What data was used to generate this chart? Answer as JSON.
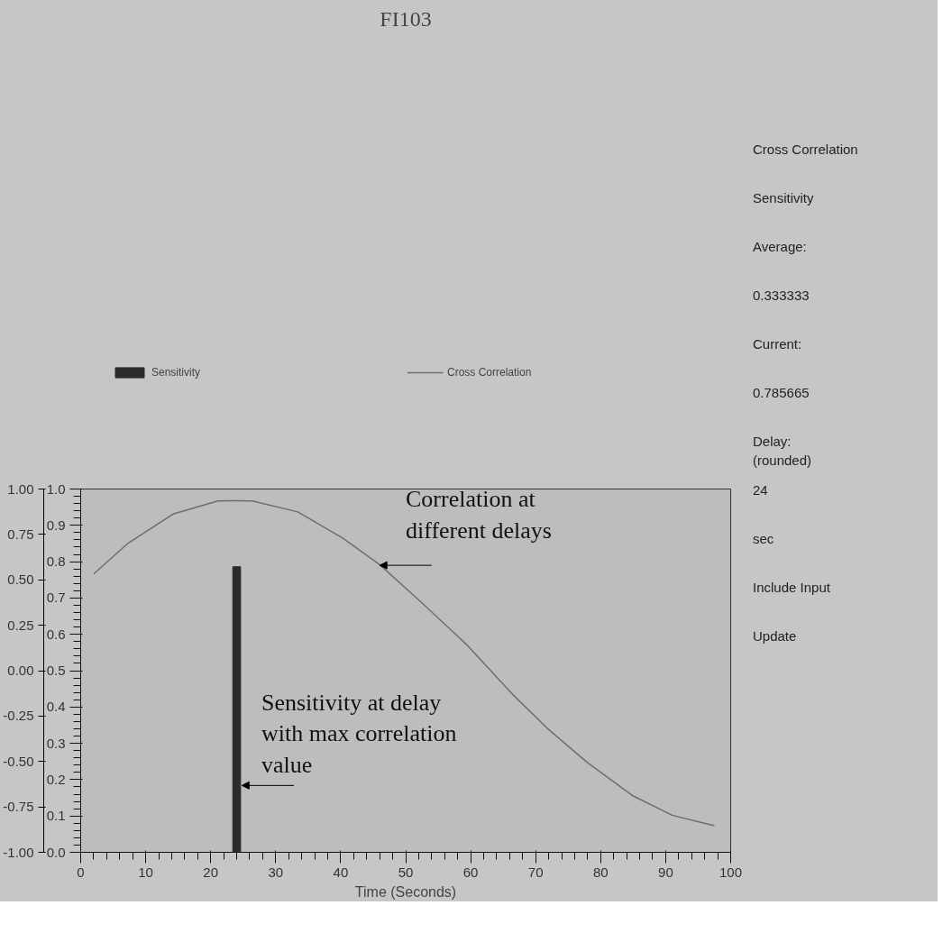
{
  "chart_data": {
    "type": "line",
    "title": "FI103",
    "xlabel": "Time (Seconds)",
    "legend": "top",
    "xlim": [
      0,
      100
    ],
    "xticks": [
      0,
      10,
      20,
      30,
      40,
      50,
      60,
      70,
      80,
      90,
      100
    ],
    "ylim": [
      0,
      1
    ],
    "yticks": [
      {
        "value": 0,
        "label": "0.0"
      },
      0.1,
      0.2,
      0.3,
      0.4,
      0.5,
      0.6,
      0.7,
      0.8,
      0.9,
      {
        "value": 1,
        "label": "1.0"
      }
    ],
    "y2lim": [
      -1,
      1
    ],
    "y2ticks": [
      {
        "value": -1,
        "label": "-1.00"
      },
      -0.75,
      {
        "value": -0.5,
        "label": "-0.50"
      },
      -0.25,
      {
        "value": 0,
        "label": "0.00"
      },
      0.25,
      {
        "value": 0.5,
        "label": "0.50"
      },
      0.75,
      {
        "value": 1,
        "label": "1.00"
      }
    ],
    "series": [
      {
        "name": "Sensitivity",
        "type": "bar",
        "color": "#2b2b2b",
        "x": [
          24
        ],
        "values": [
          0.786
        ]
      },
      {
        "name": "Cross Correlation",
        "color": "#6e6e6e",
        "x": [
          2,
          7.3,
          14.2,
          21.1,
          24,
          26.4,
          33.4,
          40.3,
          46,
          52.6,
          59.3,
          66.5,
          71.8,
          77.9,
          85,
          91,
          97.5
        ],
        "values": [
          0.766,
          0.851,
          0.931,
          0.967,
          0.968,
          0.967,
          0.937,
          0.865,
          0.792,
          0.685,
          0.573,
          0.434,
          0.341,
          0.248,
          0.155,
          0.102,
          0.073
        ]
      }
    ],
    "annotations": [
      {
        "text": "Correlation at\ndifferent delays",
        "x": 46,
        "y": 0.79
      },
      {
        "text": "Sensitivity at  delay\nwith max correlation\nvalue",
        "x": 24.8,
        "y": 0.184
      },
      "Cross Correlation",
      "Sensitivity",
      "Average:",
      "0.333333",
      "Current:",
      "0.785665",
      "Delay:\n(rounded)",
      "24",
      "sec",
      "Include Input",
      "Update"
    ]
  }
}
